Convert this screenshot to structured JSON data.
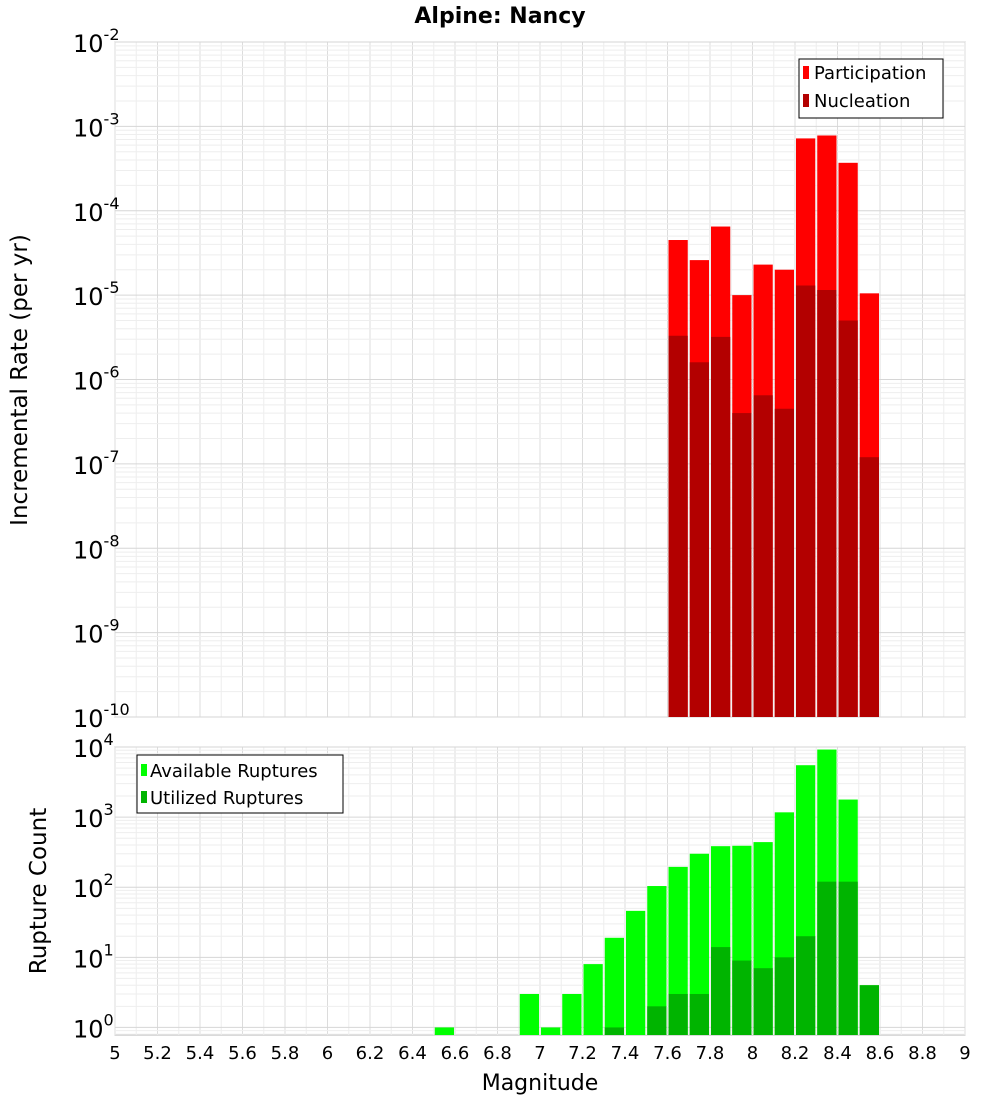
{
  "chart_data": [
    {
      "type": "bar",
      "title": "Alpine: Nancy",
      "xlabel": "",
      "ylabel": "Incremental Rate (per yr)",
      "y_scale": "log",
      "ylim": [
        1e-10,
        0.01
      ],
      "xlim": [
        5,
        9
      ],
      "y_ticks": [
        {
          "base": "10",
          "exp": "-10"
        },
        {
          "base": "10",
          "exp": "-9"
        },
        {
          "base": "10",
          "exp": "-8"
        },
        {
          "base": "10",
          "exp": "-7"
        },
        {
          "base": "10",
          "exp": "-6"
        },
        {
          "base": "10",
          "exp": "-5"
        },
        {
          "base": "10",
          "exp": "-4"
        },
        {
          "base": "10",
          "exp": "-3"
        },
        {
          "base": "10",
          "exp": "-2"
        }
      ],
      "legend_position": "top-right",
      "x": [
        7.65,
        7.75,
        7.85,
        7.95,
        8.05,
        8.15,
        8.25,
        8.35,
        8.45,
        8.55
      ],
      "series": [
        {
          "name": "Participation",
          "color": "#ff0000",
          "values": [
            4.5e-05,
            2.6e-05,
            6.5e-05,
            1e-05,
            2.3e-05,
            2e-05,
            0.00072,
            0.00078,
            0.00037,
            1.05e-05
          ]
        },
        {
          "name": "Nucleation",
          "color": "#b30000",
          "values": [
            3.3e-06,
            1.6e-06,
            3.2e-06,
            4e-07,
            6.5e-07,
            4.5e-07,
            1.3e-05,
            1.15e-05,
            5e-06,
            1.2e-07
          ]
        }
      ]
    },
    {
      "type": "bar",
      "title": "",
      "xlabel": "Magnitude",
      "ylabel": "Rupture Count",
      "y_scale": "log",
      "ylim": [
        0.78,
        10000
      ],
      "xlim": [
        5,
        9
      ],
      "x_tick_labels": [
        "5",
        "5.2",
        "5.4",
        "5.6",
        "5.8",
        "6",
        "6.2",
        "6.4",
        "6.6",
        "6.8",
        "7",
        "7.2",
        "7.4",
        "7.6",
        "7.8",
        "8",
        "8.2",
        "8.4",
        "8.6",
        "8.8",
        "9"
      ],
      "y_ticks": [
        {
          "base": "10",
          "exp": "0"
        },
        {
          "base": "10",
          "exp": "1"
        },
        {
          "base": "10",
          "exp": "2"
        },
        {
          "base": "10",
          "exp": "3"
        },
        {
          "base": "10",
          "exp": "4"
        }
      ],
      "legend_position": "top-left",
      "x": [
        6.55,
        6.95,
        7.05,
        7.15,
        7.25,
        7.35,
        7.45,
        7.55,
        7.65,
        7.75,
        7.85,
        7.95,
        8.05,
        8.15,
        8.25,
        8.35,
        8.45,
        8.55
      ],
      "series": [
        {
          "name": "Available Ruptures",
          "color": "#00ff00",
          "values": [
            1,
            3,
            1,
            3,
            8,
            19,
            46,
            104,
            195,
            300,
            385,
            390,
            440,
            1170,
            5500,
            9200,
            1780,
            4
          ]
        },
        {
          "name": "Utilized Ruptures",
          "color": "#00b400",
          "values": [
            0,
            0,
            0,
            0,
            0,
            1,
            0,
            2,
            3,
            3,
            14,
            9,
            7,
            10,
            20,
            120,
            120,
            4
          ]
        }
      ]
    }
  ]
}
